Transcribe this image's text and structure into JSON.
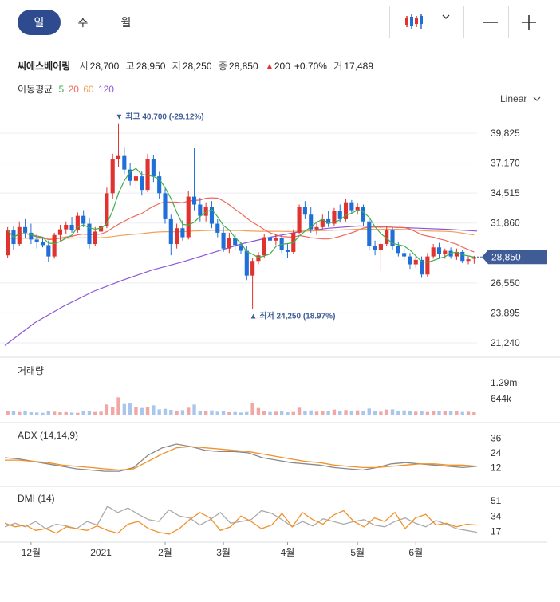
{
  "tabs": [
    {
      "label": "일",
      "active": true
    },
    {
      "label": "주",
      "active": false
    },
    {
      "label": "월",
      "active": false
    }
  ],
  "toolbar": {
    "chart_type_icon": "candlestick-icon",
    "dropdown_icon": "chevron-down-icon",
    "minus_icon": "minus-icon",
    "plus_icon": "plus-icon"
  },
  "stock": {
    "name": "씨에스베어링",
    "open_label": "시",
    "open": "28,700",
    "high_label": "고",
    "high": "28,950",
    "low_label": "저",
    "low": "28,250",
    "close_label": "종",
    "close": "28,850",
    "change_arrow": "▲",
    "change": "200",
    "change_pct": "+0.70%",
    "volume_label": "거",
    "volume": "17,489"
  },
  "ma_legend": {
    "label": "이동평균",
    "items": [
      {
        "label": "5",
        "color": "#3fae49"
      },
      {
        "label": "20",
        "color": "#ef6a5b"
      },
      {
        "label": "60",
        "color": "#f0a25a"
      },
      {
        "label": "120",
        "color": "#8d55d8"
      }
    ]
  },
  "scale_select": {
    "label": "Linear"
  },
  "colors": {
    "up": "#e0322e",
    "down": "#1f6fd8",
    "up_vol": "#f2a7a4",
    "down_vol": "#a8c7ee",
    "price_tag": "#3f5c96",
    "ma5": "#3fae49",
    "ma20": "#ef6a5b",
    "ma60": "#f0a25a",
    "ma120": "#8d55d8",
    "adx": "#888888",
    "adx_signal": "#f0922b",
    "dmi_plus": "#aaaaaa",
    "dmi_minus": "#f0922b"
  },
  "chart_data": {
    "type": "candlestick",
    "price_axis": {
      "ticks": [
        "39,825",
        "37,170",
        "34,515",
        "31,860",
        "26,550",
        "23,895",
        "21,240"
      ],
      "ylim": [
        21240,
        39825
      ]
    },
    "current_price": "28,850",
    "high_annotation": {
      "marker": "▼",
      "label": "최고",
      "value": "40,700",
      "pct": "(-29.12%)"
    },
    "low_annotation": {
      "marker": "▲",
      "label": "최저",
      "value": "24,250",
      "pct": "(18.97%)"
    },
    "x_ticks": [
      "12월",
      "2021",
      "2월",
      "3월",
      "4월",
      "5월",
      "6월"
    ],
    "candles": [
      {
        "o": 29000,
        "h": 31500,
        "l": 28800,
        "c": 31200
      },
      {
        "o": 31200,
        "h": 31600,
        "l": 29500,
        "c": 30000
      },
      {
        "o": 30000,
        "h": 32000,
        "l": 29800,
        "c": 31500
      },
      {
        "o": 31500,
        "h": 32200,
        "l": 30500,
        "c": 31000
      },
      {
        "o": 31000,
        "h": 31800,
        "l": 30000,
        "c": 30400
      },
      {
        "o": 30400,
        "h": 30900,
        "l": 29600,
        "c": 30200
      },
      {
        "o": 30200,
        "h": 30600,
        "l": 29700,
        "c": 29900
      },
      {
        "o": 29900,
        "h": 30300,
        "l": 28400,
        "c": 28900
      },
      {
        "o": 28900,
        "h": 31000,
        "l": 28700,
        "c": 30800
      },
      {
        "o": 30800,
        "h": 31700,
        "l": 30300,
        "c": 31300
      },
      {
        "o": 31300,
        "h": 32000,
        "l": 30900,
        "c": 31700
      },
      {
        "o": 31700,
        "h": 32400,
        "l": 31000,
        "c": 31200
      },
      {
        "o": 31200,
        "h": 32800,
        "l": 31000,
        "c": 32500
      },
      {
        "o": 32500,
        "h": 33000,
        "l": 31500,
        "c": 31800
      },
      {
        "o": 31800,
        "h": 32300,
        "l": 29600,
        "c": 30000
      },
      {
        "o": 30000,
        "h": 31500,
        "l": 29800,
        "c": 31100
      },
      {
        "o": 31100,
        "h": 32000,
        "l": 30700,
        "c": 31600
      },
      {
        "o": 31600,
        "h": 35000,
        "l": 31400,
        "c": 34500
      },
      {
        "o": 34500,
        "h": 38000,
        "l": 34000,
        "c": 37500
      },
      {
        "o": 37500,
        "h": 40700,
        "l": 36800,
        "c": 37800
      },
      {
        "o": 37800,
        "h": 38600,
        "l": 36200,
        "c": 36600
      },
      {
        "o": 36600,
        "h": 37200,
        "l": 35200,
        "c": 35600
      },
      {
        "o": 35600,
        "h": 36400,
        "l": 34900,
        "c": 36000
      },
      {
        "o": 36000,
        "h": 36500,
        "l": 34300,
        "c": 34800
      },
      {
        "o": 34800,
        "h": 38000,
        "l": 34600,
        "c": 37500
      },
      {
        "o": 37500,
        "h": 37900,
        "l": 35500,
        "c": 36000
      },
      {
        "o": 36000,
        "h": 36400,
        "l": 34000,
        "c": 34500
      },
      {
        "o": 34500,
        "h": 34900,
        "l": 31800,
        "c": 32200
      },
      {
        "o": 32200,
        "h": 32600,
        "l": 29000,
        "c": 30000
      },
      {
        "o": 30000,
        "h": 31800,
        "l": 29600,
        "c": 31400
      },
      {
        "o": 31400,
        "h": 32100,
        "l": 30300,
        "c": 30600
      },
      {
        "o": 30600,
        "h": 34700,
        "l": 30400,
        "c": 34200
      },
      {
        "o": 34200,
        "h": 38500,
        "l": 33000,
        "c": 33500
      },
      {
        "o": 33500,
        "h": 34100,
        "l": 32000,
        "c": 32500
      },
      {
        "o": 32500,
        "h": 33700,
        "l": 32000,
        "c": 33300
      },
      {
        "o": 33300,
        "h": 33800,
        "l": 31400,
        "c": 31800
      },
      {
        "o": 31800,
        "h": 32200,
        "l": 30600,
        "c": 31000
      },
      {
        "o": 31000,
        "h": 31500,
        "l": 29300,
        "c": 29600
      },
      {
        "o": 29600,
        "h": 31000,
        "l": 29200,
        "c": 30500
      },
      {
        "o": 30500,
        "h": 30900,
        "l": 29500,
        "c": 29900
      },
      {
        "o": 29900,
        "h": 30200,
        "l": 29100,
        "c": 29400
      },
      {
        "o": 29400,
        "h": 29800,
        "l": 26800,
        "c": 27200
      },
      {
        "o": 27200,
        "h": 28800,
        "l": 24250,
        "c": 28500
      },
      {
        "o": 28500,
        "h": 29300,
        "l": 28200,
        "c": 29000
      },
      {
        "o": 29000,
        "h": 30900,
        "l": 28800,
        "c": 30600
      },
      {
        "o": 30600,
        "h": 31200,
        "l": 30000,
        "c": 30300
      },
      {
        "o": 30300,
        "h": 30900,
        "l": 29900,
        "c": 30500
      },
      {
        "o": 30500,
        "h": 30800,
        "l": 29200,
        "c": 29500
      },
      {
        "o": 29500,
        "h": 30000,
        "l": 28800,
        "c": 29300
      },
      {
        "o": 29300,
        "h": 31300,
        "l": 29100,
        "c": 31000
      },
      {
        "o": 31000,
        "h": 33500,
        "l": 30900,
        "c": 33300
      },
      {
        "o": 33300,
        "h": 33800,
        "l": 32200,
        "c": 32600
      },
      {
        "o": 32600,
        "h": 33300,
        "l": 31000,
        "c": 31300
      },
      {
        "o": 31300,
        "h": 31900,
        "l": 30800,
        "c": 31500
      },
      {
        "o": 31500,
        "h": 32600,
        "l": 31300,
        "c": 32200
      },
      {
        "o": 32200,
        "h": 32900,
        "l": 31500,
        "c": 31800
      },
      {
        "o": 31800,
        "h": 33200,
        "l": 31600,
        "c": 32900
      },
      {
        "o": 32900,
        "h": 33500,
        "l": 31900,
        "c": 32200
      },
      {
        "o": 32200,
        "h": 34000,
        "l": 32000,
        "c": 33700
      },
      {
        "o": 33700,
        "h": 33900,
        "l": 32700,
        "c": 33000
      },
      {
        "o": 33000,
        "h": 33600,
        "l": 32600,
        "c": 33300
      },
      {
        "o": 33300,
        "h": 33500,
        "l": 31600,
        "c": 32000
      },
      {
        "o": 32000,
        "h": 32200,
        "l": 29400,
        "c": 29800
      },
      {
        "o": 29800,
        "h": 30300,
        "l": 29000,
        "c": 29500
      },
      {
        "o": 29500,
        "h": 30200,
        "l": 27600,
        "c": 30000
      },
      {
        "o": 30000,
        "h": 31600,
        "l": 29800,
        "c": 31200
      },
      {
        "o": 31200,
        "h": 31500,
        "l": 29500,
        "c": 29800
      },
      {
        "o": 29800,
        "h": 30200,
        "l": 28900,
        "c": 29200
      },
      {
        "o": 29200,
        "h": 29600,
        "l": 28600,
        "c": 28900
      },
      {
        "o": 28900,
        "h": 29200,
        "l": 27800,
        "c": 28200
      },
      {
        "o": 28200,
        "h": 29000,
        "l": 27900,
        "c": 28600
      },
      {
        "o": 28600,
        "h": 28900,
        "l": 27000,
        "c": 27300
      },
      {
        "o": 27300,
        "h": 29200,
        "l": 27100,
        "c": 28900
      },
      {
        "o": 28900,
        "h": 30000,
        "l": 28700,
        "c": 29700
      },
      {
        "o": 29700,
        "h": 30100,
        "l": 28800,
        "c": 29100
      },
      {
        "o": 29100,
        "h": 29600,
        "l": 28700,
        "c": 29400
      },
      {
        "o": 29400,
        "h": 29700,
        "l": 28700,
        "c": 28900
      },
      {
        "o": 28900,
        "h": 29600,
        "l": 28600,
        "c": 29300
      },
      {
        "o": 29300,
        "h": 29500,
        "l": 28300,
        "c": 28500
      },
      {
        "o": 28500,
        "h": 28900,
        "l": 28200,
        "c": 28650
      },
      {
        "o": 28700,
        "h": 28950,
        "l": 28250,
        "c": 28850
      }
    ],
    "ma120": [
      21000,
      23000,
      24500,
      25800,
      26800,
      27700,
      28400,
      29200,
      30000,
      30600,
      31100,
      31400,
      31600,
      31500,
      31400,
      31300,
      31150
    ],
    "volume": {
      "ticks": [
        "1.29m",
        "644k"
      ],
      "max": 1500000,
      "values": [
        120,
        150,
        100,
        130,
        90,
        80,
        70,
        120,
        110,
        90,
        95,
        80,
        70,
        120,
        140,
        100,
        110,
        380,
        300,
        650,
        400,
        450,
        300,
        250,
        280,
        350,
        200,
        220,
        180,
        150,
        170,
        260,
        380,
        130,
        140,
        160,
        110,
        120,
        90,
        100,
        80,
        100,
        450,
        250,
        120,
        100,
        110,
        130,
        90,
        100,
        260,
        140,
        160,
        110,
        140,
        120,
        190,
        150,
        170,
        140,
        160,
        130,
        230,
        150,
        110,
        190,
        200,
        140,
        160,
        120,
        110,
        150,
        100,
        130,
        140,
        120,
        150,
        120,
        100,
        110,
        90
      ]
    },
    "adx": {
      "label": "ADX (14,14,9)",
      "ticks": [
        "36",
        "24",
        "12"
      ],
      "ylim": [
        0,
        42
      ],
      "adx": [
        20,
        19,
        17,
        15,
        13,
        11,
        10,
        9,
        9,
        12,
        22,
        28,
        31,
        29,
        26,
        25,
        25,
        24,
        20,
        18,
        16,
        15,
        14,
        12,
        11,
        10,
        12,
        15,
        16,
        15,
        14,
        13,
        12,
        13
      ],
      "signal": [
        18,
        18,
        17,
        16,
        14,
        13,
        12,
        11,
        10,
        11,
        17,
        23,
        28,
        29,
        28,
        27,
        26,
        25,
        23,
        21,
        19,
        17,
        16,
        14,
        13,
        12,
        12,
        13,
        14,
        15,
        15,
        14,
        14,
        13
      ]
    },
    "dmi": {
      "label": "DMI (14)",
      "ticks": [
        "51",
        "34",
        "17"
      ],
      "ylim": [
        5,
        60
      ],
      "plus": [
        22,
        26,
        22,
        28,
        20,
        25,
        23,
        20,
        28,
        24,
        45,
        38,
        43,
        36,
        30,
        28,
        41,
        34,
        32,
        24,
        30,
        38,
        26,
        28,
        30,
        40,
        37,
        30,
        22,
        28,
        23,
        31,
        28,
        25,
        28,
        30,
        24,
        22,
        28,
        32,
        26,
        22,
        29,
        25,
        20,
        18,
        16
      ],
      "minus": [
        26,
        22,
        24,
        18,
        20,
        15,
        22,
        20,
        18,
        23,
        18,
        15,
        25,
        28,
        20,
        16,
        14,
        20,
        30,
        38,
        32,
        18,
        22,
        34,
        28,
        20,
        24,
        37,
        22,
        38,
        30,
        25,
        35,
        40,
        28,
        22,
        32,
        28,
        38,
        20,
        32,
        36,
        24,
        26,
        22,
        25,
        24
      ]
    }
  }
}
